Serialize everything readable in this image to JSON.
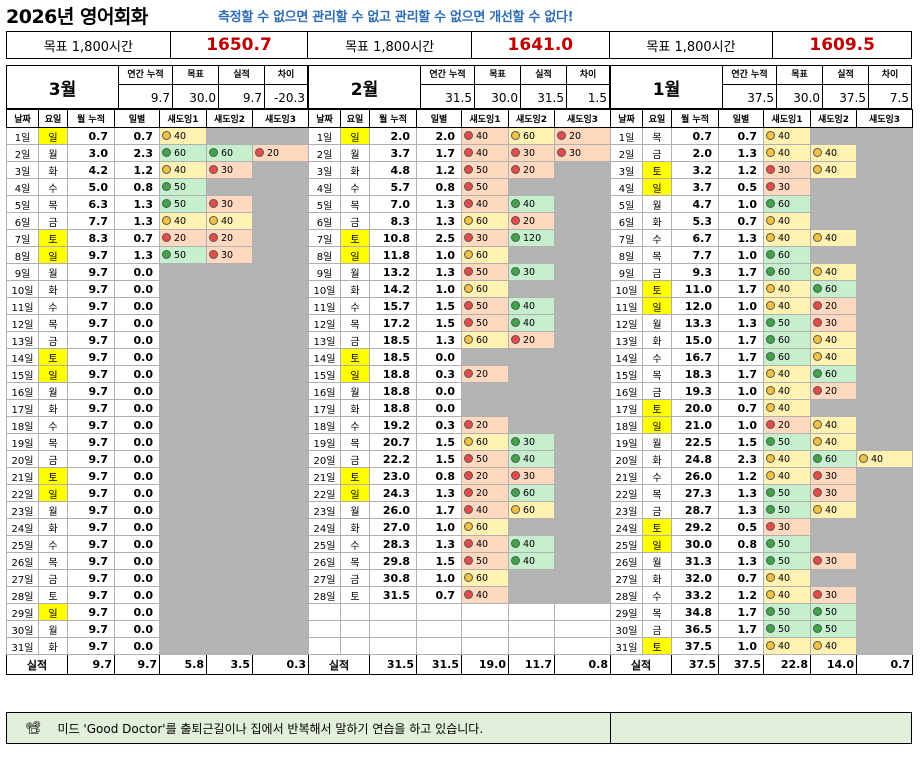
{
  "header": {
    "title": "2026년 영어회화",
    "slogan": "측정할 수 없으면 관리할 수 없고 관리할 수 없으면 개선할 수 없다!"
  },
  "goals": [
    {
      "label": "목표 1,800시간",
      "value": "1650.7"
    },
    {
      "label": "목표 1,800시간",
      "value": "1641.0"
    },
    {
      "label": "목표 1,800시간",
      "value": "1609.5"
    }
  ],
  "col_headers": {
    "annual": "연간 누적",
    "goal": "목표",
    "actual": "실적",
    "diff": "차이",
    "date": "날짜",
    "dow": "요일",
    "mcum": "월 누적",
    "daily": "일별",
    "s1": "섀도잉1",
    "s2": "섀도잉2",
    "s3": "섀도잉3",
    "total": "실적"
  },
  "colors": {
    "weekend_highlight": "#ffff00",
    "green_fill": "#c6efce",
    "yellow_fill": "#fff2b3",
    "red_fill": "#ffd8c0",
    "empty_fill": "#b4b4b4",
    "goal_value_color": "#c00000",
    "slogan_color": "#2e6db4"
  },
  "months": [
    {
      "name": "3월",
      "summary": {
        "annual": "9.7",
        "goal": "30.0",
        "actual": "9.7",
        "diff": "-20.3"
      },
      "days": [
        [
          "1일",
          "일",
          1,
          "0.7",
          "0.7",
          [
            "y40"
          ]
        ],
        [
          "2일",
          "월",
          0,
          "3.0",
          "2.3",
          [
            "g60",
            "g60",
            "r20"
          ]
        ],
        [
          "3일",
          "화",
          0,
          "4.2",
          "1.2",
          [
            "y40",
            "r30"
          ]
        ],
        [
          "4일",
          "수",
          0,
          "5.0",
          "0.8",
          [
            "g50"
          ]
        ],
        [
          "5일",
          "목",
          0,
          "6.3",
          "1.3",
          [
            "g50",
            "r30"
          ]
        ],
        [
          "6일",
          "금",
          0,
          "7.7",
          "1.3",
          [
            "y40",
            "y40"
          ]
        ],
        [
          "7일",
          "토",
          1,
          "8.3",
          "0.7",
          [
            "r20",
            "r20"
          ]
        ],
        [
          "8일",
          "일",
          1,
          "9.7",
          "1.3",
          [
            "g50",
            "r30"
          ]
        ],
        [
          "9일",
          "월",
          0,
          "9.7",
          "0.0",
          []
        ],
        [
          "10일",
          "화",
          0,
          "9.7",
          "0.0",
          []
        ],
        [
          "11일",
          "수",
          0,
          "9.7",
          "0.0",
          []
        ],
        [
          "12일",
          "목",
          0,
          "9.7",
          "0.0",
          []
        ],
        [
          "13일",
          "금",
          0,
          "9.7",
          "0.0",
          []
        ],
        [
          "14일",
          "토",
          1,
          "9.7",
          "0.0",
          []
        ],
        [
          "15일",
          "일",
          1,
          "9.7",
          "0.0",
          []
        ],
        [
          "16일",
          "월",
          0,
          "9.7",
          "0.0",
          []
        ],
        [
          "17일",
          "화",
          0,
          "9.7",
          "0.0",
          []
        ],
        [
          "18일",
          "수",
          0,
          "9.7",
          "0.0",
          []
        ],
        [
          "19일",
          "목",
          0,
          "9.7",
          "0.0",
          []
        ],
        [
          "20일",
          "금",
          0,
          "9.7",
          "0.0",
          []
        ],
        [
          "21일",
          "토",
          1,
          "9.7",
          "0.0",
          []
        ],
        [
          "22일",
          "일",
          1,
          "9.7",
          "0.0",
          []
        ],
        [
          "23일",
          "월",
          0,
          "9.7",
          "0.0",
          []
        ],
        [
          "24일",
          "화",
          0,
          "9.7",
          "0.0",
          []
        ],
        [
          "25일",
          "수",
          0,
          "9.7",
          "0.0",
          []
        ],
        [
          "26일",
          "목",
          0,
          "9.7",
          "0.0",
          []
        ],
        [
          "27일",
          "금",
          0,
          "9.7",
          "0.0",
          []
        ],
        [
          "28일",
          "토",
          0,
          "9.7",
          "0.0",
          []
        ],
        [
          "29일",
          "일",
          1,
          "9.7",
          "0.0",
          []
        ],
        [
          "30일",
          "월",
          0,
          "9.7",
          "0.0",
          []
        ],
        [
          "31일",
          "화",
          0,
          "9.7",
          "0.0",
          []
        ]
      ],
      "totals": [
        "9.7",
        "9.7",
        "5.8",
        "3.5",
        "0.3"
      ]
    },
    {
      "name": "2월",
      "summary": {
        "annual": "31.5",
        "goal": "30.0",
        "actual": "31.5",
        "diff": "1.5"
      },
      "days": [
        [
          "1일",
          "일",
          1,
          "2.0",
          "2.0",
          [
            "r40",
            "y60",
            "r20"
          ]
        ],
        [
          "2일",
          "월",
          0,
          "3.7",
          "1.7",
          [
            "r40",
            "r30",
            "r30"
          ]
        ],
        [
          "3일",
          "화",
          0,
          "4.8",
          "1.2",
          [
            "r50",
            "r20"
          ]
        ],
        [
          "4일",
          "수",
          0,
          "5.7",
          "0.8",
          [
            "r50"
          ]
        ],
        [
          "5일",
          "목",
          0,
          "7.0",
          "1.3",
          [
            "r40",
            "g40"
          ]
        ],
        [
          "6일",
          "금",
          0,
          "8.3",
          "1.3",
          [
            "y60",
            "r20"
          ]
        ],
        [
          "7일",
          "토",
          1,
          "10.8",
          "2.5",
          [
            "r30",
            "g120"
          ]
        ],
        [
          "8일",
          "일",
          1,
          "11.8",
          "1.0",
          [
            "y60"
          ]
        ],
        [
          "9일",
          "월",
          0,
          "13.2",
          "1.3",
          [
            "r50",
            "g30"
          ]
        ],
        [
          "10일",
          "화",
          0,
          "14.2",
          "1.0",
          [
            "y60"
          ]
        ],
        [
          "11일",
          "수",
          0,
          "15.7",
          "1.5",
          [
            "r50",
            "g40"
          ]
        ],
        [
          "12일",
          "목",
          0,
          "17.2",
          "1.5",
          [
            "r50",
            "g40"
          ]
        ],
        [
          "13일",
          "금",
          0,
          "18.5",
          "1.3",
          [
            "y60",
            "r20"
          ]
        ],
        [
          "14일",
          "토",
          1,
          "18.5",
          "0.0",
          []
        ],
        [
          "15일",
          "일",
          1,
          "18.8",
          "0.3",
          [
            "r20"
          ]
        ],
        [
          "16일",
          "월",
          0,
          "18.8",
          "0.0",
          []
        ],
        [
          "17일",
          "화",
          0,
          "18.8",
          "0.0",
          []
        ],
        [
          "18일",
          "수",
          0,
          "19.2",
          "0.3",
          [
            "r20"
          ]
        ],
        [
          "19일",
          "목",
          0,
          "20.7",
          "1.5",
          [
            "y60",
            "g30"
          ]
        ],
        [
          "20일",
          "금",
          0,
          "22.2",
          "1.5",
          [
            "r50",
            "g40"
          ]
        ],
        [
          "21일",
          "토",
          1,
          "23.0",
          "0.8",
          [
            "r20",
            "r30"
          ]
        ],
        [
          "22일",
          "일",
          1,
          "24.3",
          "1.3",
          [
            "r20",
            "g60"
          ]
        ],
        [
          "23일",
          "월",
          0,
          "26.0",
          "1.7",
          [
            "r40",
            "y60"
          ]
        ],
        [
          "24일",
          "화",
          0,
          "27.0",
          "1.0",
          [
            "y60"
          ]
        ],
        [
          "25일",
          "수",
          0,
          "28.3",
          "1.3",
          [
            "r40",
            "g40"
          ]
        ],
        [
          "26일",
          "목",
          0,
          "29.8",
          "1.5",
          [
            "r50",
            "g40"
          ]
        ],
        [
          "27일",
          "금",
          0,
          "30.8",
          "1.0",
          [
            "y60"
          ]
        ],
        [
          "28일",
          "토",
          0,
          "31.5",
          "0.7",
          [
            "r40"
          ]
        ]
      ],
      "totals": [
        "31.5",
        "31.5",
        "19.0",
        "11.7",
        "0.8"
      ]
    },
    {
      "name": "1월",
      "summary": {
        "annual": "37.5",
        "goal": "30.0",
        "actual": "37.5",
        "diff": "7.5"
      },
      "days": [
        [
          "1일",
          "목",
          0,
          "0.7",
          "0.7",
          [
            "y40"
          ]
        ],
        [
          "2일",
          "금",
          0,
          "2.0",
          "1.3",
          [
            "y40",
            "y40"
          ]
        ],
        [
          "3일",
          "토",
          1,
          "3.2",
          "1.2",
          [
            "r30",
            "y40"
          ]
        ],
        [
          "4일",
          "일",
          1,
          "3.7",
          "0.5",
          [
            "r30"
          ]
        ],
        [
          "5일",
          "월",
          0,
          "4.7",
          "1.0",
          [
            "g60"
          ]
        ],
        [
          "6일",
          "화",
          0,
          "5.3",
          "0.7",
          [
            "y40"
          ]
        ],
        [
          "7일",
          "수",
          0,
          "6.7",
          "1.3",
          [
            "y40",
            "y40"
          ]
        ],
        [
          "8일",
          "목",
          0,
          "7.7",
          "1.0",
          [
            "g60"
          ]
        ],
        [
          "9일",
          "금",
          0,
          "9.3",
          "1.7",
          [
            "g60",
            "y40"
          ]
        ],
        [
          "10일",
          "토",
          1,
          "11.0",
          "1.7",
          [
            "y40",
            "g60"
          ]
        ],
        [
          "11일",
          "일",
          1,
          "12.0",
          "1.0",
          [
            "y40",
            "r20"
          ]
        ],
        [
          "12일",
          "월",
          0,
          "13.3",
          "1.3",
          [
            "g50",
            "r30"
          ]
        ],
        [
          "13일",
          "화",
          0,
          "15.0",
          "1.7",
          [
            "g60",
            "y40"
          ]
        ],
        [
          "14일",
          "수",
          0,
          "16.7",
          "1.7",
          [
            "g60",
            "y40"
          ]
        ],
        [
          "15일",
          "목",
          0,
          "18.3",
          "1.7",
          [
            "y40",
            "g60"
          ]
        ],
        [
          "16일",
          "금",
          0,
          "19.3",
          "1.0",
          [
            "y40",
            "r20"
          ]
        ],
        [
          "17일",
          "토",
          1,
          "20.0",
          "0.7",
          [
            "y40"
          ]
        ],
        [
          "18일",
          "일",
          1,
          "21.0",
          "1.0",
          [
            "r20",
            "y40"
          ]
        ],
        [
          "19일",
          "월",
          0,
          "22.5",
          "1.5",
          [
            "g50",
            "y40"
          ]
        ],
        [
          "20일",
          "화",
          0,
          "24.8",
          "2.3",
          [
            "y40",
            "g60",
            "y40"
          ]
        ],
        [
          "21일",
          "수",
          0,
          "26.0",
          "1.2",
          [
            "y40",
            "r30"
          ]
        ],
        [
          "22일",
          "목",
          0,
          "27.3",
          "1.3",
          [
            "g50",
            "r30"
          ]
        ],
        [
          "23일",
          "금",
          0,
          "28.7",
          "1.3",
          [
            "g50",
            "y40"
          ]
        ],
        [
          "24일",
          "토",
          1,
          "29.2",
          "0.5",
          [
            "r30"
          ]
        ],
        [
          "25일",
          "일",
          1,
          "30.0",
          "0.8",
          [
            "g50"
          ]
        ],
        [
          "26일",
          "월",
          0,
          "31.3",
          "1.3",
          [
            "g50",
            "r30"
          ]
        ],
        [
          "27일",
          "화",
          0,
          "32.0",
          "0.7",
          [
            "y40"
          ]
        ],
        [
          "28일",
          "수",
          0,
          "33.2",
          "1.2",
          [
            "y40",
            "r30"
          ]
        ],
        [
          "29일",
          "목",
          0,
          "34.8",
          "1.7",
          [
            "g50",
            "g50"
          ]
        ],
        [
          "30일",
          "금",
          0,
          "36.5",
          "1.7",
          [
            "g50",
            "g50"
          ]
        ],
        [
          "31일",
          "토",
          1,
          "37.5",
          "1.0",
          [
            "y40",
            "y40"
          ]
        ]
      ],
      "totals": [
        "37.5",
        "37.5",
        "22.8",
        "14.0",
        "0.7"
      ]
    }
  ],
  "note": {
    "icon": "movie-camera-icon",
    "text": "미드 'Good Doctor'를 출퇴근길이나 집에서 반복해서 말하기 연습을 하고 있습니다."
  }
}
